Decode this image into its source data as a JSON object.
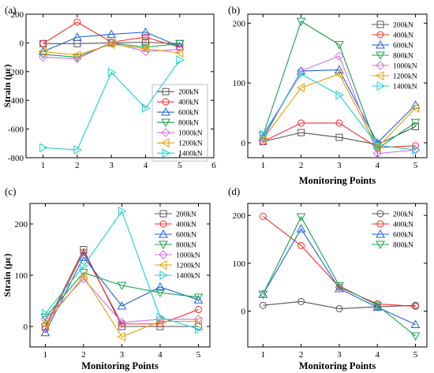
{
  "chart_data": [
    {
      "panel": "(a)",
      "type": "line",
      "xlabel": "",
      "ylabel": "Strain (με)",
      "xlim": [
        0.5,
        6
      ],
      "ylim": [
        -800,
        200
      ],
      "xticks": [
        1,
        2,
        3,
        4,
        5,
        6
      ],
      "yticks": [
        -800,
        -600,
        -400,
        -200,
        0,
        200
      ],
      "x": [
        1,
        2,
        3,
        4,
        5
      ],
      "legend_position": "center-right",
      "series": [
        {
          "name": "200kN",
          "color": "#555555",
          "marker": "square",
          "values": [
            -5,
            -5,
            0,
            5,
            -5
          ]
        },
        {
          "name": "400kN",
          "color": "#ff2a2a",
          "marker": "circle",
          "values": [
            -5,
            145,
            5,
            40,
            -30
          ]
        },
        {
          "name": "600kN",
          "color": "#1f5fe0",
          "marker": "triangle-up",
          "values": [
            -60,
            40,
            60,
            75,
            -25
          ]
        },
        {
          "name": "800kN",
          "color": "#1aa04a",
          "marker": "triangle-down",
          "values": [
            -80,
            -100,
            0,
            -30,
            -5
          ]
        },
        {
          "name": "1000kN",
          "color": "#d070e8",
          "marker": "diamond",
          "values": [
            -100,
            -110,
            0,
            -60,
            -45
          ]
        },
        {
          "name": "1200kN",
          "color": "#e0a000",
          "marker": "triangle-left",
          "values": [
            -60,
            -85,
            -10,
            -40,
            -70
          ]
        },
        {
          "name": "1400kN",
          "color": "#1fcfcf",
          "marker": "triangle-right",
          "values": [
            -730,
            -745,
            -205,
            -455,
            -120
          ]
        }
      ]
    },
    {
      "panel": "(b)",
      "type": "line",
      "xlabel": "Monitoring Points",
      "ylabel": "",
      "xlim": [
        0.6,
        5.3
      ],
      "ylim": [
        -25,
        215
      ],
      "xticks": [
        1,
        2,
        3,
        4,
        5
      ],
      "yticks": [
        0,
        100,
        200
      ],
      "x": [
        1,
        2,
        3,
        4,
        5
      ],
      "legend_position": "top-right",
      "series": [
        {
          "name": "200kN",
          "color": "#555555",
          "marker": "square",
          "values": [
            2,
            17,
            9,
            -3,
            27
          ]
        },
        {
          "name": "400kN",
          "color": "#ff2a2a",
          "marker": "circle",
          "values": [
            2,
            33,
            33,
            -8,
            -5
          ]
        },
        {
          "name": "600kN",
          "color": "#1f5fe0",
          "marker": "triangle-up",
          "values": [
            9,
            120,
            122,
            0,
            63
          ]
        },
        {
          "name": "800kN",
          "color": "#1aa04a",
          "marker": "triangle-down",
          "values": [
            12,
            203,
            164,
            -10,
            34
          ]
        },
        {
          "name": "1000kN",
          "color": "#d070e8",
          "marker": "diamond",
          "values": [
            6,
            120,
            145,
            -18,
            -12
          ]
        },
        {
          "name": "1200kN",
          "color": "#e0a000",
          "marker": "triangle-left",
          "values": [
            6,
            92,
            115,
            -8,
            58
          ]
        },
        {
          "name": "1400kN",
          "color": "#1fcfcf",
          "marker": "triangle-right",
          "values": [
            14,
            115,
            80,
            -4,
            -12
          ]
        }
      ]
    },
    {
      "panel": "(c)",
      "type": "line",
      "xlabel": "Monitoring Points",
      "ylabel": "Strain (με)",
      "xlim": [
        0.6,
        5.3
      ],
      "ylim": [
        -40,
        240
      ],
      "xticks": [
        1,
        2,
        3,
        4,
        5
      ],
      "yticks": [
        0,
        100,
        200
      ],
      "x": [
        1,
        2,
        3,
        4,
        5
      ],
      "legend_position": "top-right",
      "series": [
        {
          "name": "200kN",
          "color": "#555555",
          "marker": "square",
          "values": [
            0,
            150,
            0,
            0,
            0
          ]
        },
        {
          "name": "400kN",
          "color": "#ff2a2a",
          "marker": "circle",
          "values": [
            -5,
            145,
            5,
            5,
            33
          ]
        },
        {
          "name": "600kN",
          "color": "#1f5fe0",
          "marker": "triangle-up",
          "values": [
            -12,
            135,
            40,
            77,
            52
          ]
        },
        {
          "name": "800kN",
          "color": "#1aa04a",
          "marker": "triangle-down",
          "values": [
            18,
            105,
            80,
            66,
            57
          ]
        },
        {
          "name": "1000kN",
          "color": "#d070e8",
          "marker": "diamond",
          "values": [
            14,
            93,
            8,
            14,
            14
          ]
        },
        {
          "name": "1200kN",
          "color": "#e0a000",
          "marker": "triangle-left",
          "values": [
            5,
            98,
            -20,
            10,
            10
          ]
        },
        {
          "name": "1400kN",
          "color": "#1fcfcf",
          "marker": "triangle-right",
          "values": [
            25,
            118,
            225,
            18,
            -5
          ]
        }
      ]
    },
    {
      "panel": "(d)",
      "type": "line",
      "xlabel": "Monitoring Points",
      "ylabel": "",
      "xlim": [
        0.6,
        5.3
      ],
      "ylim": [
        -75,
        225
      ],
      "xticks": [
        1,
        2,
        3,
        4,
        5
      ],
      "yticks": [
        0,
        100,
        200
      ],
      "x": [
        1,
        2,
        3,
        4,
        5
      ],
      "legend_position": "top-right",
      "series": [
        {
          "name": "200kN",
          "color": "#555555",
          "marker": "circle",
          "values": [
            12,
            20,
            5,
            9,
            12
          ]
        },
        {
          "name": "400kN",
          "color": "#ff2a2a",
          "marker": "circle",
          "values": [
            198,
            137,
            50,
            15,
            10
          ]
        },
        {
          "name": "600kN",
          "color": "#1f5fe0",
          "marker": "triangle-up",
          "values": [
            35,
            172,
            47,
            8,
            -28
          ]
        },
        {
          "name": "800kN",
          "color": "#1aa04a",
          "marker": "triangle-down",
          "values": [
            35,
            197,
            53,
            12,
            -52
          ]
        }
      ]
    }
  ]
}
